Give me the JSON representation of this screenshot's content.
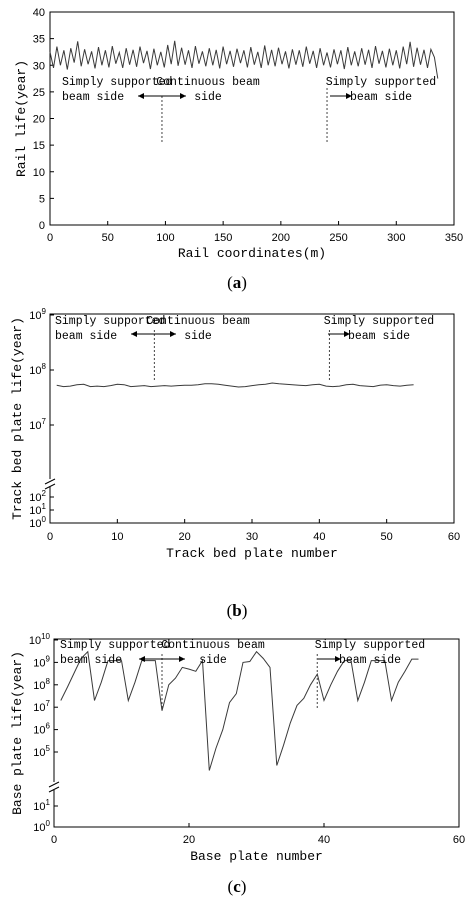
{
  "figure": {
    "panels": [
      {
        "label_open": "(",
        "label_letter": "a",
        "label_close": ")"
      },
      {
        "label_open": "(",
        "label_letter": "b",
        "label_close": ")"
      },
      {
        "label_open": "(",
        "label_letter": "c",
        "label_close": ")"
      }
    ]
  },
  "colors": {
    "line": "#3a3a3a",
    "axis": "#000000",
    "text": "#000000"
  },
  "chart_data": [
    {
      "type": "line",
      "title": "",
      "xlabel": "Rail coordinates(m)",
      "ylabel": "Rail life(year)",
      "xlim": [
        0,
        350
      ],
      "ylim": [
        0,
        40
      ],
      "xticks": [
        0,
        50,
        100,
        150,
        200,
        250,
        300,
        350
      ],
      "yticks": [
        0,
        5,
        10,
        15,
        20,
        25,
        30,
        35,
        40
      ],
      "grid": false,
      "series": [
        {
          "x": [
            0,
            3,
            6,
            9,
            12,
            15,
            18,
            21,
            24,
            27,
            30,
            33,
            36,
            39,
            42,
            45,
            48,
            51,
            54,
            57,
            60,
            63,
            66,
            69,
            72,
            75,
            78,
            81,
            84,
            87,
            90,
            93,
            96,
            99,
            102,
            105,
            108,
            111,
            114,
            117,
            120,
            123,
            126,
            129,
            132,
            135,
            138,
            141,
            144,
            147,
            150,
            153,
            156,
            159,
            162,
            165,
            168,
            171,
            174,
            177,
            180,
            183,
            186,
            189,
            192,
            195,
            198,
            201,
            204,
            207,
            210,
            213,
            216,
            219,
            222,
            225,
            228,
            231,
            234,
            237,
            240,
            243,
            246,
            249,
            252,
            255,
            258,
            261,
            264,
            267,
            270,
            273,
            276,
            279,
            282,
            285,
            288,
            291,
            294,
            297,
            300,
            303,
            306,
            309,
            312,
            315,
            318,
            321,
            324,
            327,
            330,
            333,
            336
          ],
          "values": [
            32.5,
            29.5,
            33.5,
            30.0,
            32.8,
            29.2,
            33.2,
            30.5,
            34.5,
            29.8,
            33.0,
            30.2,
            32.6,
            29.4,
            33.4,
            30.0,
            32.8,
            29.6,
            33.6,
            30.3,
            32.4,
            29.5,
            33.2,
            30.1,
            32.9,
            29.7,
            33.5,
            30.4,
            32.7,
            29.3,
            33.1,
            30.0,
            32.5,
            29.6,
            33.8,
            30.2,
            34.6,
            29.9,
            33.3,
            30.1,
            32.8,
            29.5,
            33.6,
            30.3,
            32.6,
            29.8,
            33.2,
            30.0,
            32.9,
            29.4,
            33.5,
            30.2,
            32.7,
            29.7,
            33.1,
            30.4,
            32.8,
            29.6,
            33.4,
            30.1,
            32.5,
            29.5,
            33.7,
            30.0,
            32.9,
            29.8,
            33.3,
            30.2,
            32.6,
            29.4,
            33.0,
            30.1,
            32.8,
            29.7,
            33.5,
            30.3,
            32.7,
            29.5,
            33.2,
            30.0,
            32.4,
            29.6,
            33.0,
            30.2,
            32.8,
            29.3,
            33.4,
            30.0,
            32.6,
            29.8,
            33.2,
            30.1,
            32.9,
            29.5,
            33.6,
            30.3,
            32.7,
            29.6,
            33.1,
            30.0,
            32.8,
            29.4,
            33.5,
            30.2,
            34.4,
            29.7,
            33.3,
            30.1,
            32.9,
            29.5,
            33.0,
            31.5,
            27.5
          ]
        }
      ],
      "annotations": [
        {
          "text": [
            "Simply supported",
            "beam side"
          ],
          "arrow": "left"
        },
        {
          "text": [
            "Continuous beam",
            "side"
          ],
          "arrow": "right"
        },
        {
          "text": [
            "Simply supported",
            "beam side"
          ],
          "arrow": "right"
        }
      ],
      "dividers_x": [
        97,
        240
      ]
    },
    {
      "type": "line",
      "title": "",
      "xlabel": "Track bed plate number",
      "ylabel": "Track bed plate life(year)",
      "xlim": [
        0,
        60
      ],
      "yscale": "log",
      "axis_break": true,
      "xticks": [
        0,
        10,
        20,
        30,
        40,
        50,
        60
      ],
      "yticks_upper": [
        "10^7",
        "10^8",
        "10^9"
      ],
      "yticks_lower": [
        "10^0",
        "10^1",
        "10^2"
      ],
      "grid": false,
      "series": [
        {
          "x": [
            1,
            2,
            3,
            4,
            5,
            6,
            7,
            8,
            9,
            10,
            11,
            12,
            13,
            14,
            15,
            16,
            17,
            18,
            19,
            20,
            21,
            22,
            23,
            24,
            25,
            26,
            27,
            28,
            29,
            30,
            31,
            32,
            33,
            34,
            35,
            36,
            37,
            38,
            39,
            40,
            41,
            42,
            43,
            44,
            45,
            46,
            47,
            48,
            49,
            50,
            51,
            52,
            53,
            54
          ],
          "values": [
            53000000.0,
            50000000.0,
            51000000.0,
            54000000.0,
            55000000.0,
            50000000.0,
            51000000.0,
            50000000.0,
            52000000.0,
            55000000.0,
            54000000.0,
            50000000.0,
            51000000.0,
            52000000.0,
            50000000.0,
            51000000.0,
            52000000.0,
            51000000.0,
            52000000.0,
            53000000.0,
            53000000.0,
            54000000.0,
            56000000.0,
            56000000.0,
            55000000.0,
            53000000.0,
            51000000.0,
            49000000.0,
            50000000.0,
            52000000.0,
            54000000.0,
            55000000.0,
            58000000.0,
            56000000.0,
            55000000.0,
            54000000.0,
            53000000.0,
            52000000.0,
            54000000.0,
            55000000.0,
            51000000.0,
            50000000.0,
            51000000.0,
            54000000.0,
            55000000.0,
            52000000.0,
            51000000.0,
            50000000.0,
            53000000.0,
            54000000.0,
            52000000.0,
            51000000.0,
            53000000.0,
            54000000.0
          ]
        }
      ],
      "annotations": [
        {
          "text": [
            "Simply supported",
            "beam side"
          ],
          "arrow": "left"
        },
        {
          "text": [
            "Continuous beam",
            "side"
          ],
          "arrow": "right"
        },
        {
          "text": [
            "Simply supported",
            "beam side"
          ],
          "arrow": "right"
        }
      ],
      "dividers_x": [
        15.5,
        41.5
      ]
    },
    {
      "type": "line",
      "title": "",
      "xlabel": "Base plate number",
      "ylabel": "Base plate life(year)",
      "xlim": [
        0,
        60
      ],
      "yscale": "log",
      "axis_break": true,
      "xticks": [
        0,
        20,
        40,
        60
      ],
      "yticks_upper": [
        "10^5",
        "10^6",
        "10^7",
        "10^8",
        "10^9",
        "10^10"
      ],
      "yticks_lower": [
        "10^0",
        "10^1"
      ],
      "grid": false,
      "series": [
        {
          "x": [
            1,
            2,
            3,
            4,
            5,
            6,
            7,
            8,
            9,
            10,
            11,
            12,
            13,
            14,
            15,
            16,
            17,
            18,
            19,
            20,
            21,
            22,
            23,
            24,
            25,
            26,
            27,
            28,
            29,
            30,
            31,
            32,
            33,
            34,
            35,
            36,
            37,
            38,
            39,
            40,
            41,
            42,
            43,
            44,
            45,
            46,
            47,
            48,
            49,
            50,
            51,
            52,
            53,
            54
          ],
          "values": [
            20000000.0,
            80000000.0,
            350000000.0,
            1500000000.0,
            3000000000.0,
            20000000.0,
            130000000.0,
            1200000000.0,
            1200000000.0,
            1200000000.0,
            20000000.0,
            130000000.0,
            1200000000.0,
            1200000000.0,
            1200000000.0,
            7000000.0,
            100000000.0,
            200000000.0,
            600000000.0,
            500000000.0,
            400000000.0,
            1200000000.0,
            15000.0,
            150000.0,
            1000000.0,
            16000000.0,
            40000000.0,
            1000000000.0,
            1100000000.0,
            3000000000.0,
            1500000000.0,
            600000000.0,
            25000.0,
            200000.0,
            2000000.0,
            12000000.0,
            25000000.0,
            100000000.0,
            300000000.0,
            20000000.0,
            100000000.0,
            400000000.0,
            1200000000.0,
            1200000000.0,
            20000000.0,
            130000000.0,
            1200000000.0,
            1200000000.0,
            1200000000.0,
            20000000.0,
            130000000.0,
            400000000.0,
            1400000000.0,
            1400000000.0
          ]
        }
      ],
      "annotations": [
        {
          "text": [
            "Simply supported",
            "beam side"
          ],
          "arrow": "left"
        },
        {
          "text": [
            "Continuous beam",
            "side"
          ],
          "arrow": "right"
        },
        {
          "text": [
            "Simply supported",
            "beam side"
          ],
          "arrow": "right"
        }
      ],
      "dividers_x": [
        16,
        39
      ]
    }
  ]
}
